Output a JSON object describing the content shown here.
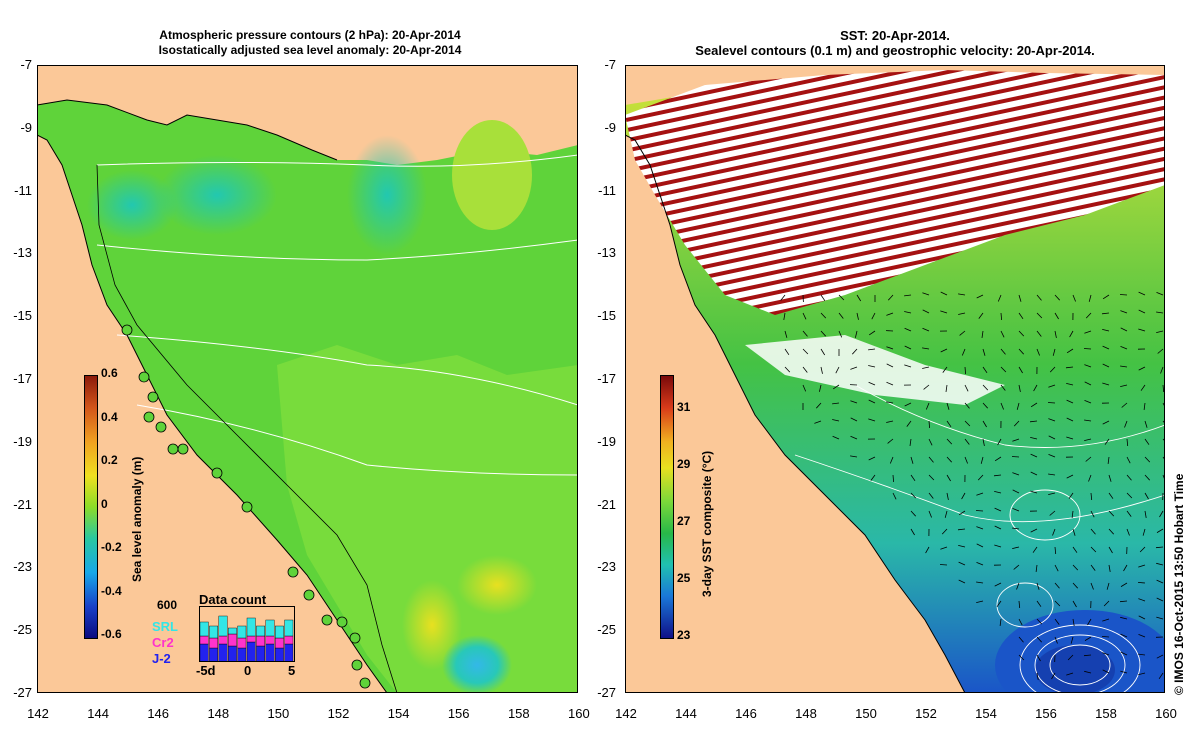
{
  "left_panel": {
    "title_line1": "Atmospheric pressure contours (2 hPa): 20-Apr-2014",
    "title_line2": "Isostatically adjusted sea level anomaly: 20-Apr-2014",
    "colorbar": {
      "label": "Sea level anomaly (m)",
      "ticks": [
        "0.6",
        "0.4",
        "0.2",
        "0",
        "-0.2",
        "-0.4",
        "-0.6"
      ]
    },
    "inset": {
      "title": "Data count",
      "ymax_label": "600",
      "missions": [
        {
          "name": "SRL",
          "color": "#33e6e6"
        },
        {
          "name": "Cr2",
          "color": "#ff33cc"
        },
        {
          "name": "J-2",
          "color": "#2222ee"
        }
      ],
      "x_ticks": [
        "-5d",
        "0",
        "5"
      ]
    }
  },
  "right_panel": {
    "title_line1": "SST: 20-Apr-2014.",
    "title_line2": "Sealevel contours (0.1 m) and geostrophic velocity: 20-Apr-2014.",
    "colorbar": {
      "label": "3-day SST composite (°C)",
      "ticks": [
        "31",
        "29",
        "27",
        "25",
        "23"
      ]
    }
  },
  "axes": {
    "lat_ticks": [
      "-7",
      "-9",
      "-11",
      "-13",
      "-15",
      "-17",
      "-19",
      "-21",
      "-23",
      "-25",
      "-27"
    ],
    "lon_ticks": [
      "142",
      "144",
      "146",
      "148",
      "150",
      "152",
      "154",
      "156",
      "158",
      "160"
    ]
  },
  "credit": "© IMOS 16-Oct-2015 13:50 Hobart Time",
  "colors": {
    "land": "#fbc898",
    "ocean_green": "#5fd33a",
    "warm_sst": "#a6e03a",
    "cool_sst": "#1a55c8",
    "cloud_red": "#a51111"
  }
}
